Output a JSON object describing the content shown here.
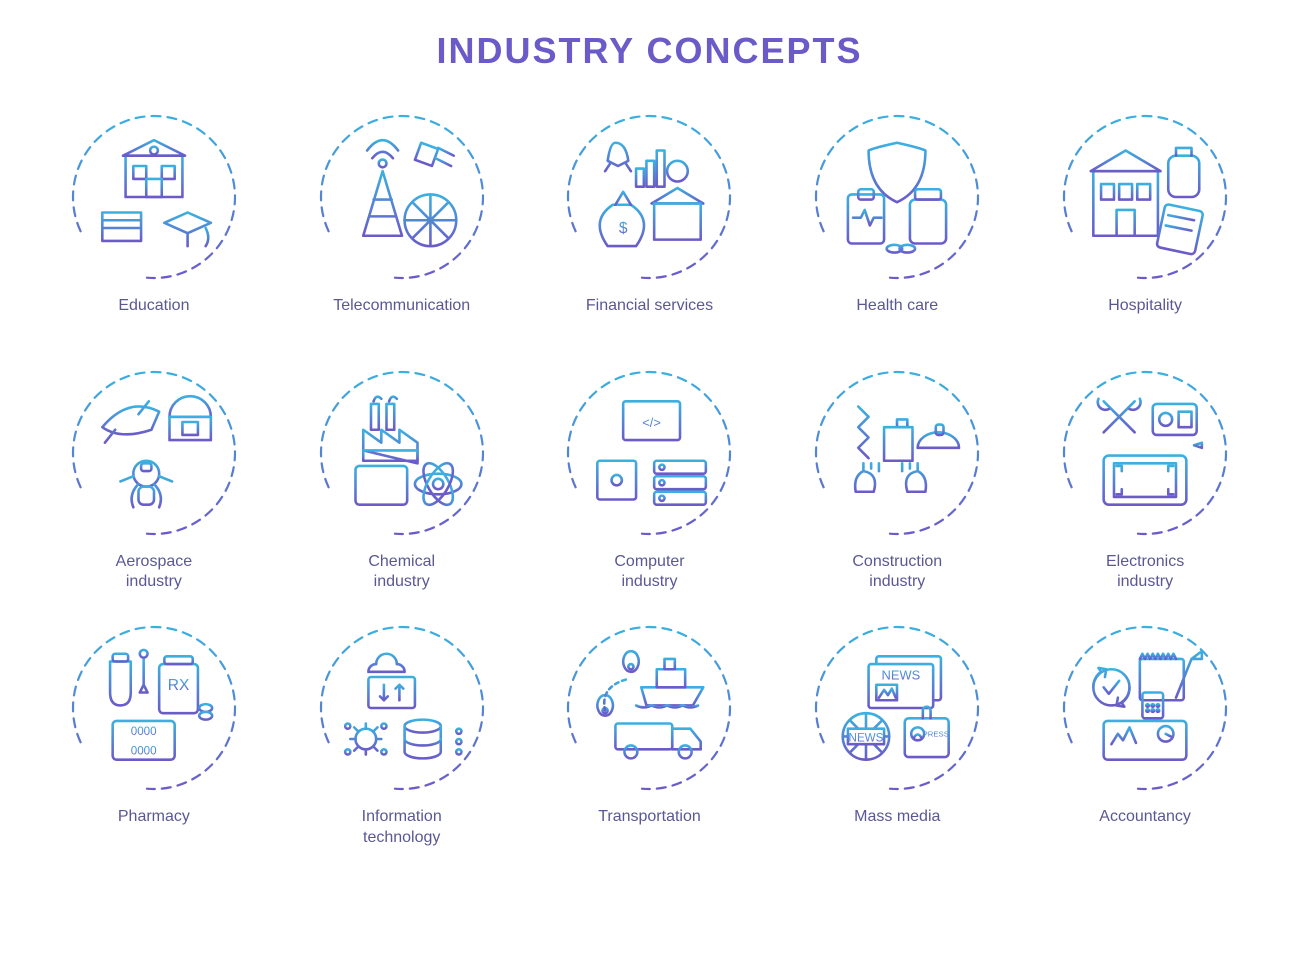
{
  "title": "INDUSTRY CONCEPTS",
  "style": {
    "title_color": "#6b5bc9",
    "title_fontsize": 36,
    "label_color": "#5a5894",
    "label_fontsize": 16,
    "background_color": "#ffffff",
    "gradient_top": "#3bb0e0",
    "gradient_bottom": "#6b5bc9",
    "circle_diameter": 170,
    "circle_stroke_width": 2.2,
    "circle_dash": "9 7",
    "icon_stroke_width": 2,
    "grid_columns": 5,
    "grid_rows": 3
  },
  "items": [
    {
      "id": "education",
      "label": "Education",
      "icon": "education-icon"
    },
    {
      "id": "telecommunication",
      "label": "Telecommunication",
      "icon": "telecom-icon"
    },
    {
      "id": "financial-services",
      "label": "Financial services",
      "icon": "finance-icon"
    },
    {
      "id": "health-care",
      "label": "Health care",
      "icon": "healthcare-icon"
    },
    {
      "id": "hospitality",
      "label": "Hospitality",
      "icon": "hospitality-icon"
    },
    {
      "id": "aerospace",
      "label": "Aerospace\nindustry",
      "icon": "aerospace-icon"
    },
    {
      "id": "chemical",
      "label": "Chemical\nindustry",
      "icon": "chemical-icon"
    },
    {
      "id": "computer",
      "label": "Computer\nindustry",
      "icon": "computer-icon"
    },
    {
      "id": "construction",
      "label": "Construction\nindustry",
      "icon": "construction-icon"
    },
    {
      "id": "electronics",
      "label": "Electronics\nindustry",
      "icon": "electronics-icon"
    },
    {
      "id": "pharmacy",
      "label": "Pharmacy",
      "icon": "pharmacy-icon"
    },
    {
      "id": "it",
      "label": "Information\ntechnology",
      "icon": "it-icon"
    },
    {
      "id": "transportation",
      "label": "Transportation",
      "icon": "transport-icon"
    },
    {
      "id": "mass-media",
      "label": "Mass media",
      "icon": "media-icon"
    },
    {
      "id": "accountancy",
      "label": "Accountancy",
      "icon": "accountancy-icon"
    }
  ],
  "icon_text": {
    "finance-icon": "$",
    "computer-icon": "</>",
    "pharmacy-icon": "RX",
    "pharmacy-digits": "0000",
    "media-news": "NEWS",
    "media-press": "PRESS"
  }
}
